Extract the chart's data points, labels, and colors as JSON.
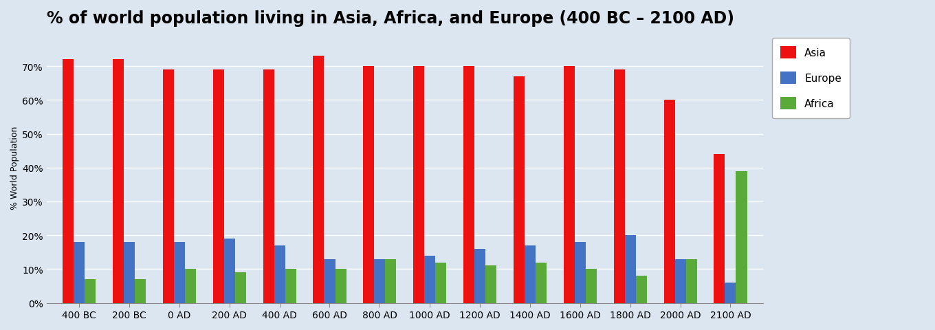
{
  "title": "% of world population living in Asia, Africa, and Europe (400 BC – 2100 AD)",
  "ylabel": "% World Population",
  "categories": [
    "400 BC",
    "200 BC",
    "0 AD",
    "200 AD",
    "400 AD",
    "600 AD",
    "800 AD",
    "1000 AD",
    "1200 AD",
    "1400 AD",
    "1600 AD",
    "1800 AD",
    "2000 AD",
    "2100 AD"
  ],
  "asia": [
    72,
    72,
    69,
    69,
    69,
    73,
    70,
    70,
    70,
    67,
    70,
    69,
    60,
    44
  ],
  "europe": [
    18,
    18,
    18,
    19,
    17,
    13,
    13,
    14,
    16,
    17,
    18,
    20,
    13,
    6
  ],
  "africa": [
    7,
    7,
    10,
    9,
    10,
    10,
    13,
    12,
    11,
    12,
    10,
    8,
    13,
    39
  ],
  "asia_color": "#ee1111",
  "europe_color": "#4472c4",
  "africa_color": "#5aaa3a",
  "background_color": "#dce6f1",
  "plot_bg_color": "#dce6f1",
  "title_fontsize": 17,
  "ylabel_fontsize": 9,
  "tick_fontsize": 10,
  "legend_labels": [
    "Asia",
    "Europe",
    "Africa"
  ],
  "ylim": [
    0,
    80
  ],
  "yticks": [
    0,
    10,
    20,
    30,
    40,
    50,
    60,
    70
  ],
  "ytick_labels": [
    "0%",
    "10%",
    "20%",
    "30%",
    "40%",
    "50%",
    "60%",
    "70%"
  ]
}
